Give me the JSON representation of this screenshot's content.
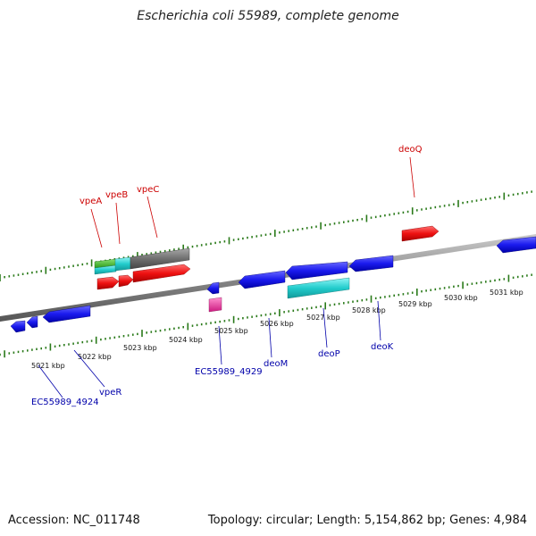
{
  "title": "Escherichia coli 55989, complete genome",
  "footer": {
    "accession": "Accession: NC_011748",
    "topology": "Topology: circular; Length: 5,154,862 bp; Genes: 4,984"
  },
  "colors": {
    "label_red": "#cc0000",
    "label_blue": "#0000aa",
    "tick_green": "#2a7a1a",
    "backbone": "#888888"
  },
  "kbp_labels": [
    "5021 kbp",
    "5022 kbp",
    "5023 kbp",
    "5024 kbp",
    "5025 kbp",
    "5026 kbp",
    "5027 kbp",
    "5028 kbp",
    "5029 kbp",
    "5030 kbp",
    "5031 kbp"
  ],
  "gene_labels_top": [
    "vpeA",
    "vpeB",
    "vpeC",
    "deoQ"
  ],
  "gene_labels_bottom": [
    "EC55989_4924",
    "vpeR",
    "EC55989_4929",
    "deoM",
    "deoP",
    "deoK"
  ]
}
